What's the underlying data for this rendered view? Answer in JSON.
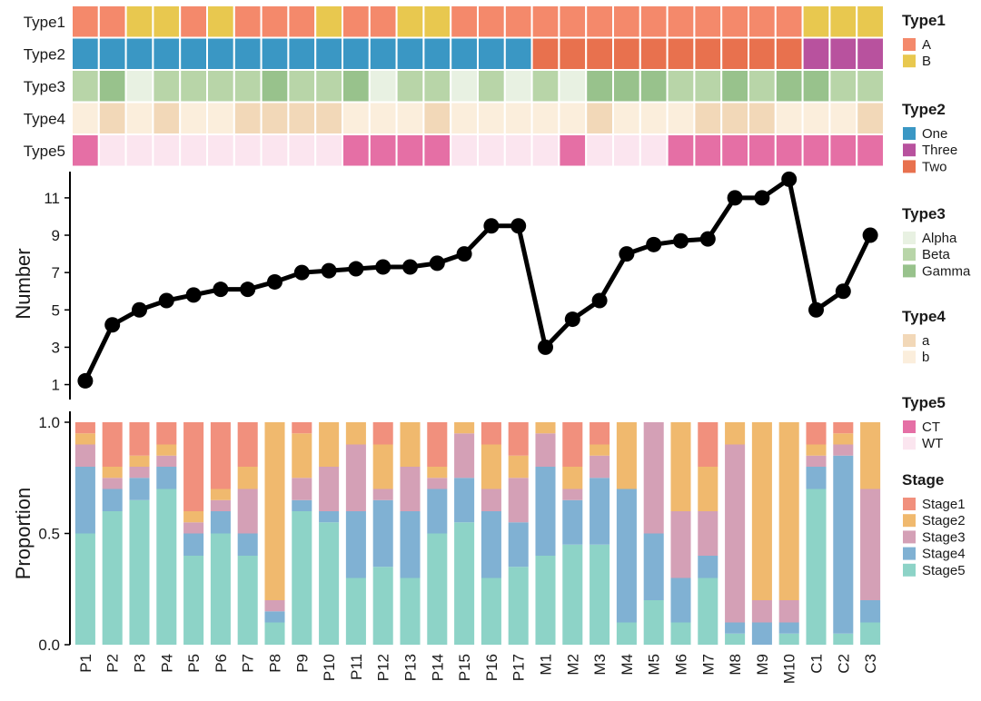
{
  "chart_data": {
    "type": "composite",
    "samples": [
      "P1",
      "P2",
      "P3",
      "P4",
      "P5",
      "P6",
      "P7",
      "P8",
      "P9",
      "P10",
      "P11",
      "P12",
      "P13",
      "P14",
      "P15",
      "P16",
      "P17",
      "M1",
      "M2",
      "M3",
      "M4",
      "M5",
      "M6",
      "M7",
      "M8",
      "M9",
      "M10",
      "C1",
      "C2",
      "C3"
    ],
    "annotations": {
      "rows": [
        "Type1",
        "Type2",
        "Type3",
        "Type4",
        "Type5"
      ],
      "values": {
        "Type1": [
          "A",
          "A",
          "B",
          "B",
          "A",
          "B",
          "A",
          "A",
          "A",
          "B",
          "A",
          "A",
          "B",
          "B",
          "A",
          "A",
          "A",
          "A",
          "A",
          "A",
          "A",
          "A",
          "A",
          "A",
          "A",
          "A",
          "A",
          "B",
          "B",
          "B"
        ],
        "Type2": [
          "One",
          "One",
          "One",
          "One",
          "One",
          "One",
          "One",
          "One",
          "One",
          "One",
          "One",
          "One",
          "One",
          "One",
          "One",
          "One",
          "One",
          "Two",
          "Two",
          "Two",
          "Two",
          "Two",
          "Two",
          "Two",
          "Two",
          "Two",
          "Two",
          "Three",
          "Three",
          "Three"
        ],
        "Type3": [
          "Beta",
          "Gamma",
          "Alpha",
          "Beta",
          "Beta",
          "Beta",
          "Beta",
          "Gamma",
          "Beta",
          "Beta",
          "Gamma",
          "Alpha",
          "Beta",
          "Beta",
          "Alpha",
          "Beta",
          "Alpha",
          "Beta",
          "Alpha",
          "Gamma",
          "Gamma",
          "Gamma",
          "Beta",
          "Beta",
          "Gamma",
          "Beta",
          "Gamma",
          "Gamma",
          "Beta",
          "Beta"
        ],
        "Type4": [
          "b",
          "a",
          "b",
          "a",
          "b",
          "b",
          "a",
          "a",
          "a",
          "a",
          "b",
          "b",
          "b",
          "a",
          "b",
          "b",
          "b",
          "b",
          "b",
          "a",
          "b",
          "b",
          "b",
          "a",
          "a",
          "a",
          "b",
          "b",
          "b",
          "a"
        ],
        "Type5": [
          "CT",
          "WT",
          "WT",
          "WT",
          "WT",
          "WT",
          "WT",
          "WT",
          "WT",
          "WT",
          "CT",
          "CT",
          "CT",
          "CT",
          "WT",
          "WT",
          "WT",
          "WT",
          "CT",
          "WT",
          "WT",
          "WT",
          "CT",
          "CT",
          "CT",
          "CT",
          "CT",
          "CT",
          "CT",
          "CT"
        ]
      },
      "colors": {
        "Type1": {
          "A": "#F4896B",
          "B": "#E8C84F"
        },
        "Type2": {
          "One": "#3A97C4",
          "Three": "#B8529E",
          "Two": "#E8714E"
        },
        "Type3": {
          "Alpha": "#E8F1E2",
          "Beta": "#B8D5A8",
          "Gamma": "#98C28C"
        },
        "Type4": {
          "a": "#F2D8B8",
          "b": "#FBEEDC"
        },
        "Type5": {
          "CT": "#E56FA5",
          "WT": "#FBE5EF"
        }
      }
    },
    "line": {
      "ylabel": "Number",
      "ylim": [
        0.2,
        12.6
      ],
      "yticks": [
        1,
        3,
        5,
        7,
        9,
        11
      ],
      "values": [
        1.2,
        4.2,
        5.0,
        5.5,
        5.8,
        6.1,
        6.1,
        6.5,
        7.0,
        7.1,
        7.2,
        7.3,
        7.3,
        7.5,
        8.0,
        9.5,
        9.5,
        3.0,
        4.5,
        5.5,
        8.0,
        8.5,
        8.7,
        8.8,
        11.0,
        11.0,
        12.0,
        5.0,
        6.0,
        9.0
      ],
      "color": "#000000"
    },
    "stacked_bar": {
      "ylabel": "Proportion",
      "ylim": [
        0,
        1
      ],
      "yticks": [
        "0.0",
        "0.5",
        "1.0"
      ],
      "stack_order_bottom_to_top": [
        "Stage5",
        "Stage4",
        "Stage3",
        "Stage2",
        "Stage1"
      ],
      "series": [
        {
          "name": "Stage5",
          "color": "#8DD3C7",
          "values": [
            0.5,
            0.6,
            0.65,
            0.7,
            0.4,
            0.5,
            0.4,
            0.1,
            0.6,
            0.55,
            0.3,
            0.35,
            0.3,
            0.5,
            0.55,
            0.3,
            0.35,
            0.4,
            0.45,
            0.45,
            0.1,
            0.2,
            0.1,
            0.3,
            0.05,
            0.0,
            0.05,
            0.7,
            0.05,
            0.1
          ]
        },
        {
          "name": "Stage4",
          "color": "#80B1D3",
          "values": [
            0.3,
            0.1,
            0.1,
            0.1,
            0.1,
            0.1,
            0.1,
            0.05,
            0.05,
            0.05,
            0.3,
            0.3,
            0.3,
            0.2,
            0.2,
            0.3,
            0.2,
            0.4,
            0.2,
            0.3,
            0.6,
            0.3,
            0.2,
            0.1,
            0.05,
            0.1,
            0.05,
            0.1,
            0.8,
            0.1
          ]
        },
        {
          "name": "Stage3",
          "color": "#D4A0B6",
          "values": [
            0.1,
            0.05,
            0.05,
            0.05,
            0.05,
            0.05,
            0.2,
            0.05,
            0.1,
            0.2,
            0.3,
            0.05,
            0.2,
            0.05,
            0.2,
            0.1,
            0.2,
            0.15,
            0.05,
            0.1,
            0.0,
            0.5,
            0.3,
            0.2,
            0.8,
            0.1,
            0.1,
            0.05,
            0.05,
            0.5
          ]
        },
        {
          "name": "Stage2",
          "color": "#F0B96E",
          "values": [
            0.05,
            0.05,
            0.05,
            0.05,
            0.05,
            0.05,
            0.1,
            0.8,
            0.2,
            0.2,
            0.1,
            0.2,
            0.2,
            0.05,
            0.05,
            0.2,
            0.1,
            0.05,
            0.1,
            0.05,
            0.3,
            0.0,
            0.4,
            0.2,
            0.1,
            0.8,
            0.8,
            0.05,
            0.05,
            0.3
          ]
        },
        {
          "name": "Stage1",
          "color": "#F1907D",
          "values": [
            0.05,
            0.2,
            0.15,
            0.1,
            0.4,
            0.3,
            0.2,
            0.0,
            0.05,
            0.0,
            0.0,
            0.1,
            0.0,
            0.2,
            0.0,
            0.1,
            0.15,
            0.0,
            0.2,
            0.1,
            0.0,
            0.0,
            0.0,
            0.2,
            0.0,
            0.0,
            0.0,
            0.1,
            0.05,
            0.0
          ]
        }
      ]
    },
    "legend": {
      "placement": "right",
      "groups": [
        {
          "title": "Type1",
          "items": [
            "A",
            "B"
          ]
        },
        {
          "title": "Type2",
          "items": [
            "One",
            "Three",
            "Two"
          ]
        },
        {
          "title": "Type3",
          "items": [
            "Alpha",
            "Beta",
            "Gamma"
          ]
        },
        {
          "title": "Type4",
          "items": [
            "a",
            "b"
          ]
        },
        {
          "title": "Type5",
          "items": [
            "CT",
            "WT"
          ]
        },
        {
          "title": "Stage",
          "items": [
            "Stage1",
            "Stage2",
            "Stage3",
            "Stage4",
            "Stage5"
          ]
        }
      ]
    }
  }
}
